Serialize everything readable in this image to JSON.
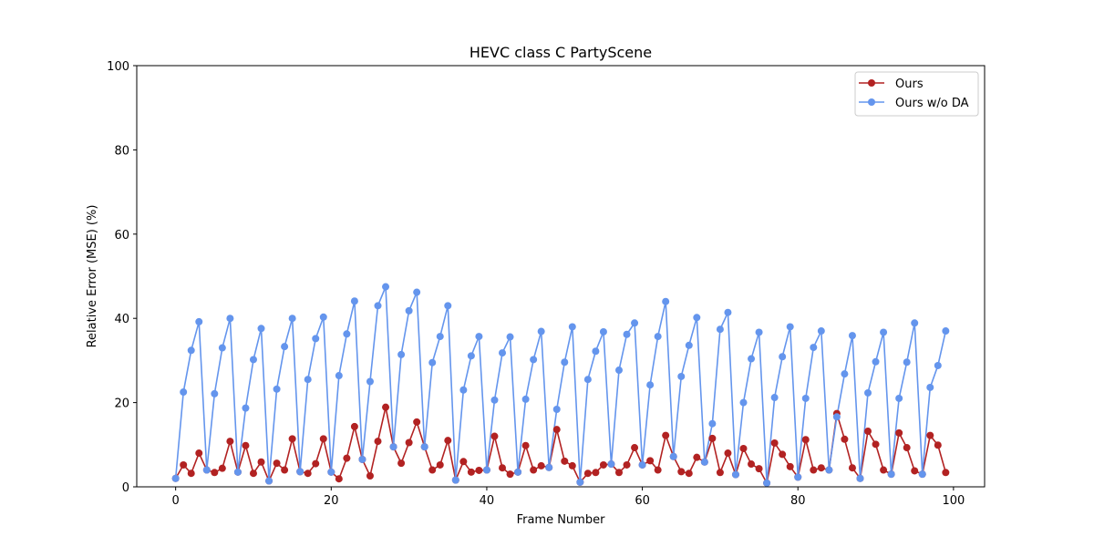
{
  "chart_data": {
    "type": "line",
    "title": "HEVC class C PartyScene",
    "xlabel": "Frame Number",
    "ylabel": "Relative Error (MSE) (%)",
    "xlim": [
      -5,
      104
    ],
    "ylim": [
      0,
      100
    ],
    "xticks": [
      0,
      20,
      40,
      60,
      80,
      100
    ],
    "yticks": [
      0,
      20,
      40,
      60,
      80,
      100
    ],
    "grid": false,
    "legend_position": "top-right",
    "x": [
      0,
      1,
      2,
      3,
      4,
      5,
      6,
      7,
      8,
      9,
      10,
      11,
      12,
      13,
      14,
      15,
      16,
      17,
      18,
      19,
      20,
      21,
      22,
      23,
      24,
      25,
      26,
      27,
      28,
      29,
      30,
      31,
      32,
      33,
      34,
      35,
      36,
      37,
      38,
      39,
      40,
      41,
      42,
      43,
      44,
      45,
      46,
      47,
      48,
      49,
      50,
      51,
      52,
      53,
      54,
      55,
      56,
      57,
      58,
      59,
      60,
      61,
      62,
      63,
      64,
      65,
      66,
      67,
      68,
      69,
      70,
      71,
      72,
      73,
      74,
      75,
      76,
      77,
      78,
      79,
      80,
      81,
      82,
      83,
      84,
      85,
      86,
      87,
      88,
      89,
      90,
      91,
      92,
      93,
      94,
      95,
      96,
      97,
      98,
      99
    ],
    "series": [
      {
        "name": "Ours",
        "color": "#b22222",
        "values": [
          2.0,
          5.2,
          3.2,
          8.0,
          4.0,
          3.4,
          4.4,
          10.8,
          3.5,
          9.8,
          3.2,
          5.9,
          1.4,
          5.6,
          4.0,
          11.4,
          3.6,
          3.2,
          5.5,
          11.4,
          3.5,
          1.9,
          6.8,
          14.3,
          6.5,
          2.6,
          10.8,
          18.9,
          9.5,
          5.6,
          10.5,
          15.4,
          9.5,
          4.0,
          5.2,
          11.0,
          1.6,
          6.0,
          3.5,
          3.9,
          4.0,
          12.0,
          4.5,
          3.0,
          3.5,
          9.8,
          4.0,
          5.0,
          4.6,
          13.6,
          6.1,
          5.0,
          1.1,
          3.2,
          3.4,
          5.2,
          5.4,
          3.4,
          5.2,
          9.3,
          5.2,
          6.2,
          4.0,
          12.2,
          7.2,
          3.6,
          3.2,
          7.0,
          5.9,
          11.5,
          3.4,
          8.0,
          2.9,
          9.1,
          5.4,
          4.3,
          0.9,
          10.4,
          7.7,
          4.8,
          2.3,
          11.2,
          4.0,
          4.5,
          4.0,
          17.4,
          11.3,
          4.5,
          2.0,
          13.2,
          10.1,
          4.0,
          3.0,
          12.8,
          9.3,
          3.8,
          3.0,
          12.2,
          9.9,
          3.4
        ]
      },
      {
        "name": "Ours w/o DA",
        "color": "#6495ed",
        "values": [
          2.0,
          22.5,
          32.4,
          39.2,
          4.0,
          22.1,
          33.0,
          40.0,
          3.5,
          18.7,
          30.2,
          37.6,
          1.4,
          23.2,
          33.3,
          40.0,
          3.6,
          25.5,
          35.2,
          40.3,
          3.5,
          26.4,
          36.3,
          44.1,
          6.5,
          25.0,
          43.0,
          47.5,
          9.5,
          31.4,
          41.8,
          46.2,
          9.5,
          29.5,
          35.7,
          43.0,
          1.6,
          23.0,
          31.1,
          35.7,
          4.0,
          20.6,
          31.8,
          35.6,
          3.5,
          20.8,
          30.2,
          36.9,
          4.6,
          18.4,
          29.6,
          38.0,
          1.1,
          25.5,
          32.2,
          36.8,
          5.4,
          27.7,
          36.2,
          38.9,
          5.2,
          24.2,
          35.7,
          44.0,
          7.2,
          26.2,
          33.6,
          40.2,
          5.9,
          15.0,
          37.4,
          41.4,
          2.9,
          20.0,
          30.4,
          36.7,
          0.9,
          21.2,
          30.9,
          38.0,
          2.3,
          21.0,
          33.1,
          37.0,
          4.0,
          16.6,
          26.8,
          35.9,
          2.0,
          22.3,
          29.7,
          36.7,
          3.0,
          21.0,
          29.6,
          38.9,
          3.0,
          23.6,
          28.8,
          37.0
        ]
      }
    ]
  }
}
